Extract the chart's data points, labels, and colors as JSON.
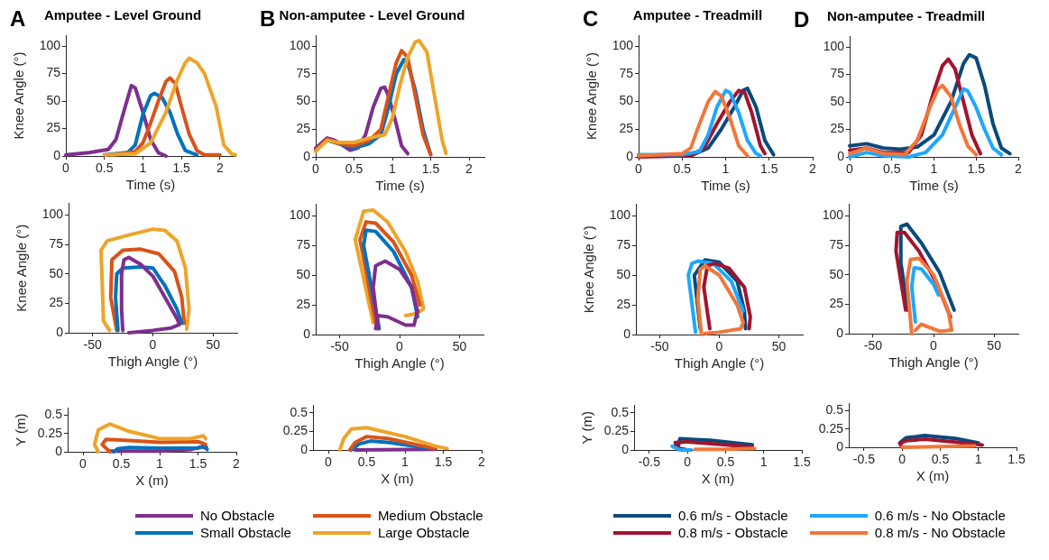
{
  "chart_data": [
    {
      "type": "line",
      "title": "Amputee - Level Ground",
      "annotations": [
        "A"
      ],
      "xlabel": "Time (s)",
      "ylabel": "Knee Angle (°)",
      "xlim": [
        0,
        2.2
      ],
      "xticks": [
        0,
        0.5,
        1,
        1.5,
        2
      ],
      "ylim": [
        0,
        110
      ],
      "yticks": [
        0,
        25,
        50,
        75,
        100
      ],
      "series": [
        {
          "color": "#7e2f8e",
          "x": [
            0,
            0.3,
            0.55,
            0.65,
            0.75,
            0.85,
            0.9,
            1.0,
            1.1,
            1.2,
            1.3
          ],
          "values": [
            1,
            3,
            6,
            15,
            40,
            64,
            62,
            40,
            15,
            3,
            0
          ]
        },
        {
          "color": "#0072bd",
          "x": [
            0.5,
            0.8,
            0.9,
            1.0,
            1.1,
            1.15,
            1.25,
            1.35,
            1.45,
            1.55,
            1.7
          ],
          "values": [
            1,
            3,
            10,
            38,
            55,
            57,
            53,
            40,
            20,
            5,
            1
          ]
        },
        {
          "color": "#d95319",
          "x": [
            0.6,
            0.9,
            1.0,
            1.1,
            1.2,
            1.3,
            1.35,
            1.42,
            1.5,
            1.6,
            1.7,
            1.8,
            2.0
          ],
          "values": [
            1,
            4,
            12,
            30,
            50,
            68,
            71,
            66,
            45,
            20,
            5,
            1,
            1
          ]
        },
        {
          "color": "#eda42a",
          "x": [
            0.5,
            0.9,
            1.1,
            1.3,
            1.45,
            1.55,
            1.6,
            1.7,
            1.8,
            1.95,
            2.05,
            2.15,
            2.2
          ],
          "values": [
            1,
            2,
            12,
            40,
            70,
            85,
            89,
            85,
            75,
            45,
            10,
            2,
            1
          ]
        }
      ]
    },
    {
      "type": "line",
      "title": "Non-amputee - Level Ground",
      "annotations": [
        "B"
      ],
      "xlabel": "Time (s)",
      "xlim": [
        0,
        2.2
      ],
      "xticks": [
        0,
        0.5,
        1,
        1.5,
        2
      ],
      "ylim": [
        0,
        110
      ],
      "yticks": [
        0,
        25,
        50,
        75,
        100
      ],
      "series": [
        {
          "color": "#7e2f8e",
          "x": [
            0,
            0.15,
            0.25,
            0.45,
            0.55,
            0.65,
            0.75,
            0.85,
            0.9,
            0.95,
            1.05,
            1.12,
            1.2
          ],
          "values": [
            8,
            17,
            15,
            6,
            8,
            20,
            45,
            62,
            63,
            55,
            30,
            10,
            3
          ]
        },
        {
          "color": "#0072bd",
          "x": [
            0,
            0.15,
            0.3,
            0.5,
            0.7,
            0.85,
            0.95,
            1.05,
            1.15,
            1.2,
            1.3,
            1.4,
            1.5
          ],
          "values": [
            6,
            15,
            12,
            8,
            12,
            20,
            45,
            75,
            88,
            85,
            60,
            25,
            2
          ]
        },
        {
          "color": "#d95319",
          "x": [
            0,
            0.15,
            0.3,
            0.5,
            0.7,
            0.85,
            0.95,
            1.05,
            1.12,
            1.2,
            1.3,
            1.4,
            1.5
          ],
          "values": [
            6,
            16,
            12,
            10,
            15,
            25,
            55,
            85,
            96,
            90,
            55,
            20,
            2
          ]
        },
        {
          "color": "#eda42a",
          "x": [
            0,
            0.15,
            0.3,
            0.5,
            0.7,
            0.9,
            1.0,
            1.1,
            1.2,
            1.3,
            1.35,
            1.45,
            1.55,
            1.65,
            1.7
          ],
          "values": [
            5,
            15,
            13,
            13,
            17,
            20,
            35,
            65,
            90,
            104,
            105,
            95,
            55,
            15,
            3
          ]
        }
      ]
    },
    {
      "type": "line",
      "title": "Amputee - Treadmill",
      "annotations": [
        "C"
      ],
      "xlabel": "Time (s)",
      "ylabel": "Knee Angle (°)",
      "xlim": [
        0,
        2
      ],
      "xticks": [
        0,
        0.5,
        1,
        1.5,
        2
      ],
      "ylim": [
        0,
        110
      ],
      "yticks": [
        0,
        25,
        50,
        75,
        100
      ],
      "series": [
        {
          "color": "#0a4a7c",
          "x": [
            0,
            0.6,
            0.8,
            0.95,
            1.1,
            1.2,
            1.25,
            1.35,
            1.45,
            1.55
          ],
          "values": [
            1,
            1,
            8,
            25,
            45,
            60,
            62,
            45,
            15,
            2
          ]
        },
        {
          "color": "#a2142f",
          "x": [
            0,
            0.6,
            0.75,
            0.9,
            1.05,
            1.15,
            1.22,
            1.3,
            1.4,
            1.45
          ],
          "values": [
            0,
            1,
            8,
            30,
            50,
            60,
            58,
            40,
            10,
            3
          ]
        },
        {
          "color": "#1ea7fd",
          "x": [
            0,
            0.5,
            0.7,
            0.8,
            0.9,
            1.0,
            1.05,
            1.15,
            1.25,
            1.35,
            1.4
          ],
          "values": [
            2,
            2,
            5,
            20,
            45,
            60,
            58,
            40,
            15,
            3,
            1
          ]
        },
        {
          "color": "#f2763a",
          "x": [
            0,
            0.5,
            0.6,
            0.7,
            0.8,
            0.88,
            0.95,
            1.05,
            1.15,
            1.25
          ],
          "values": [
            1,
            3,
            8,
            30,
            50,
            59,
            55,
            35,
            10,
            1
          ]
        }
      ]
    },
    {
      "type": "line",
      "title": "Non-amputee - Treadmill",
      "annotations": [
        "D"
      ],
      "xlabel": "Time (s)",
      "xlim": [
        0,
        2
      ],
      "xticks": [
        0,
        0.5,
        1,
        1.5,
        2
      ],
      "ylim": [
        0,
        110
      ],
      "yticks": [
        0,
        25,
        50,
        75,
        100
      ],
      "series": [
        {
          "color": "#0a4a7c",
          "x": [
            0,
            0.2,
            0.4,
            0.6,
            0.8,
            1.0,
            1.2,
            1.35,
            1.42,
            1.5,
            1.6,
            1.7,
            1.8,
            1.9
          ],
          "values": [
            10,
            12,
            8,
            7,
            9,
            20,
            50,
            85,
            93,
            90,
            65,
            30,
            8,
            3
          ]
        },
        {
          "color": "#a2142f",
          "x": [
            0,
            0.2,
            0.4,
            0.7,
            0.85,
            1.0,
            1.1,
            1.17,
            1.25,
            1.35,
            1.45,
            1.55
          ],
          "values": [
            6,
            8,
            4,
            4,
            20,
            60,
            83,
            89,
            80,
            50,
            20,
            3
          ]
        },
        {
          "color": "#1ea7fd",
          "x": [
            0,
            0.2,
            0.4,
            0.7,
            0.9,
            1.1,
            1.25,
            1.35,
            1.4,
            1.5,
            1.6,
            1.7,
            1.8
          ],
          "values": [
            0,
            4,
            1,
            0,
            4,
            20,
            45,
            62,
            60,
            45,
            25,
            8,
            2
          ]
        },
        {
          "color": "#f2763a",
          "x": [
            0,
            0.2,
            0.4,
            0.65,
            0.8,
            0.95,
            1.05,
            1.1,
            1.2,
            1.3,
            1.4,
            1.5
          ],
          "values": [
            3,
            8,
            3,
            2,
            15,
            45,
            62,
            65,
            55,
            30,
            10,
            2
          ]
        }
      ]
    },
    {
      "type": "line",
      "xlabel": "Thigh Angle (°)",
      "ylabel": "Knee Angle (°)",
      "xlim": [
        -70,
        70
      ],
      "xticks": [
        -50,
        0,
        50
      ],
      "ylim": [
        0,
        110
      ],
      "yticks": [
        0,
        25,
        50,
        75,
        100
      ],
      "series": [
        {
          "color": "#eda42a",
          "x": [
            -36,
            -41,
            -42,
            -43,
            -38,
            -20,
            0,
            10,
            20,
            27,
            30,
            28
          ],
          "values": [
            2,
            10,
            40,
            70,
            78,
            83,
            88,
            87,
            78,
            55,
            20,
            3
          ]
        },
        {
          "color": "#d95319",
          "x": [
            -30,
            -35,
            -34,
            -25,
            -10,
            5,
            18,
            24,
            26
          ],
          "values": [
            2,
            30,
            62,
            70,
            71,
            67,
            52,
            30,
            8
          ]
        },
        {
          "color": "#0072bd",
          "x": [
            -29,
            -31,
            -30,
            -25,
            -10,
            0,
            10,
            20,
            24
          ],
          "values": [
            2,
            30,
            50,
            55,
            56,
            55,
            40,
            20,
            8
          ]
        },
        {
          "color": "#7e2f8e",
          "x": [
            -25,
            -26,
            -26,
            -24,
            -20,
            -10,
            0,
            10,
            20,
            22,
            15,
            0,
            -20
          ],
          "values": [
            2,
            20,
            50,
            62,
            64,
            58,
            48,
            30,
            12,
            7,
            4,
            2,
            0
          ]
        }
      ]
    },
    {
      "type": "line",
      "xlabel": "Thigh Angle (°)",
      "xlim": [
        -70,
        70
      ],
      "xticks": [
        -50,
        0,
        50
      ],
      "ylim": [
        0,
        110
      ],
      "yticks": [
        0,
        25,
        50,
        75,
        100
      ],
      "series": [
        {
          "color": "#eda42a",
          "x": [
            -22,
            -37,
            -30,
            -22,
            -10,
            5,
            15,
            20,
            15,
            5
          ],
          "values": [
            10,
            80,
            104,
            105,
            95,
            70,
            45,
            22,
            18,
            16
          ]
        },
        {
          "color": "#d95319",
          "x": [
            -20,
            -33,
            -28,
            -20,
            -5,
            10,
            17
          ],
          "values": [
            10,
            80,
            95,
            94,
            78,
            50,
            25
          ]
        },
        {
          "color": "#0072bd",
          "x": [
            -17,
            -30,
            -28,
            -20,
            -5,
            10,
            15
          ],
          "values": [
            5,
            75,
            88,
            87,
            70,
            40,
            15
          ]
        },
        {
          "color": "#7e2f8e",
          "x": [
            -18,
            -22,
            -20,
            -12,
            0,
            10,
            15,
            12,
            5,
            -10,
            -18,
            -20
          ],
          "values": [
            5,
            40,
            58,
            62,
            55,
            40,
            20,
            8,
            8,
            15,
            16,
            5
          ]
        }
      ]
    },
    {
      "type": "line",
      "xlabel": "Thigh Angle (°)",
      "ylabel": "Knee Angle (°)",
      "xlim": [
        -70,
        70
      ],
      "xticks": [
        -50,
        0,
        50
      ],
      "ylim": [
        0,
        110
      ],
      "yticks": [
        0,
        25,
        50,
        75,
        100
      ],
      "series": [
        {
          "color": "#0a4a7c",
          "x": [
            -16,
            -21,
            -12,
            0,
            15,
            21,
            22
          ],
          "values": [
            5,
            50,
            63,
            61,
            45,
            20,
            5
          ]
        },
        {
          "color": "#1ea7fd",
          "x": [
            -20,
            -26,
            -23,
            -18,
            -5,
            10,
            20
          ],
          "values": [
            2,
            50,
            60,
            62,
            60,
            45,
            20
          ]
        },
        {
          "color": "#a2142f",
          "x": [
            -8,
            -13,
            -10,
            -4,
            8,
            21,
            26,
            25
          ],
          "values": [
            5,
            40,
            58,
            60,
            56,
            40,
            15,
            5
          ]
        },
        {
          "color": "#f2763a",
          "x": [
            -15,
            -18,
            -16,
            -12,
            0,
            15,
            20,
            18,
            0,
            -12
          ],
          "values": [
            0,
            30,
            55,
            58,
            50,
            25,
            10,
            5,
            2,
            1
          ]
        }
      ]
    },
    {
      "type": "line",
      "xlabel": "Thigh Angle (°)",
      "xlim": [
        -70,
        70
      ],
      "xticks": [
        -50,
        0,
        50
      ],
      "ylim": [
        0,
        110
      ],
      "yticks": [
        0,
        25,
        50,
        75,
        100
      ],
      "series": [
        {
          "color": "#0a4a7c",
          "x": [
            -21,
            -27,
            -27,
            -22,
            -10,
            5,
            17
          ],
          "values": [
            20,
            60,
            91,
            93,
            77,
            52,
            20
          ]
        },
        {
          "color": "#a2142f",
          "x": [
            -23,
            -31,
            -30,
            -24,
            -12,
            3,
            14
          ],
          "values": [
            20,
            70,
            86,
            86,
            70,
            42,
            14
          ]
        },
        {
          "color": "#1ea7fd",
          "x": [
            -15,
            -18,
            -16,
            -10,
            0,
            4
          ],
          "values": [
            10,
            40,
            56,
            55,
            42,
            33
          ]
        },
        {
          "color": "#f2763a",
          "x": [
            -18,
            -22,
            -19,
            -12,
            0,
            12,
            15,
            5,
            -10,
            -15
          ],
          "values": [
            0,
            45,
            63,
            64,
            50,
            20,
            3,
            2,
            8,
            3
          ]
        }
      ]
    },
    {
      "type": "line",
      "xlabel": "X (m)",
      "ylabel": "Y (m)",
      "legend": "bottom",
      "xlim": [
        -0.2,
        2
      ],
      "xticks": [
        0,
        0.5,
        1,
        1.5,
        2
      ],
      "ylim": [
        0,
        0.6
      ],
      "yticks": [
        0,
        0.25,
        0.5
      ],
      "series": [
        {
          "name": "No Obstacle",
          "color": "#7e2f8e",
          "x": [
            0.35,
            1.0,
            1.4,
            1.55,
            1.6
          ],
          "values": [
            0.01,
            0.01,
            0.03,
            0.07,
            0.05
          ]
        },
        {
          "name": "Small Obstacle",
          "color": "#0072bd",
          "x": [
            0.4,
            0.45,
            0.6,
            1.0,
            1.5,
            1.6,
            1.62
          ],
          "values": [
            0,
            0.04,
            0.06,
            0.05,
            0.05,
            0.08,
            0.03
          ]
        },
        {
          "name": "Medium Obstacle",
          "color": "#d95319",
          "x": [
            0.35,
            0.25,
            0.3,
            0.5,
            1.0,
            1.5,
            1.6
          ],
          "values": [
            0,
            0.1,
            0.17,
            0.16,
            0.13,
            0.14,
            0.1
          ]
        },
        {
          "name": "Large Obstacle",
          "color": "#eda42a",
          "x": [
            0.2,
            0.15,
            0.2,
            0.35,
            0.6,
            1.0,
            1.4,
            1.57,
            1.6
          ],
          "values": [
            0,
            0.1,
            0.3,
            0.38,
            0.28,
            0.18,
            0.18,
            0.22,
            0.18
          ]
        }
      ]
    },
    {
      "type": "line",
      "xlabel": "X (m)",
      "xlim": [
        -0.2,
        2
      ],
      "xticks": [
        0,
        0.5,
        1,
        1.5,
        2
      ],
      "ylim": [
        0,
        0.6
      ],
      "yticks": [
        0,
        0.25,
        0.5
      ],
      "series": [
        {
          "color": "#7e2f8e",
          "x": [
            0.35,
            1.4
          ],
          "values": [
            0,
            0.01
          ]
        },
        {
          "color": "#0072bd",
          "x": [
            0.3,
            0.4,
            0.55,
            0.8,
            1.2,
            1.35
          ],
          "values": [
            0,
            0.08,
            0.12,
            0.1,
            0.04,
            0.02
          ]
        },
        {
          "color": "#d95319",
          "x": [
            0.28,
            0.35,
            0.5,
            0.8,
            1.2,
            1.4
          ],
          "values": [
            0,
            0.1,
            0.18,
            0.15,
            0.06,
            0.02
          ]
        },
        {
          "color": "#eda42a",
          "x": [
            0.15,
            0.2,
            0.3,
            0.5,
            1.0,
            1.4,
            1.55
          ],
          "values": [
            0,
            0.15,
            0.28,
            0.3,
            0.18,
            0.05,
            0.02
          ]
        }
      ]
    },
    {
      "type": "line",
      "xlabel": "X (m)",
      "ylabel": "Y (m)",
      "legend": "bottom",
      "xlim": [
        -0.7,
        1.5
      ],
      "xticks": [
        -0.5,
        0,
        0.5,
        1,
        1.5
      ],
      "ylim": [
        0,
        0.6
      ],
      "yticks": [
        0,
        0.25,
        0.5
      ],
      "series": [
        {
          "name": "0.6 m/s - Obstacle",
          "color": "#0a4a7c",
          "x": [
            -0.12,
            -0.1,
            0.3,
            0.85
          ],
          "values": [
            0.05,
            0.15,
            0.13,
            0.07
          ]
        },
        {
          "name": "0.8 m/s - Obstacle",
          "color": "#a2142f",
          "x": [
            0,
            -0.15,
            -0.16,
            0,
            0.5,
            0.85
          ],
          "values": [
            0,
            0.03,
            0.1,
            0.11,
            0.07,
            0.04
          ]
        },
        {
          "name": "0.6 m/s - No Obstacle",
          "color": "#1ea7fd",
          "x": [
            -0.2,
            -0.1,
            0.05
          ],
          "values": [
            0.05,
            0,
            0
          ]
        },
        {
          "name": "0.8 m/s - No Obstacle",
          "color": "#f2763a",
          "x": [
            0.1,
            0.5,
            0.88
          ],
          "values": [
            0.01,
            0.01,
            0.02
          ]
        }
      ]
    },
    {
      "type": "line",
      "xlabel": "X (m)",
      "xlim": [
        -0.7,
        1.5
      ],
      "xticks": [
        -0.5,
        0,
        0.5,
        1,
        1.5
      ],
      "ylim": [
        0,
        0.6
      ],
      "yticks": [
        0,
        0.25,
        0.5
      ],
      "series": [
        {
          "color": "#0a4a7c",
          "x": [
            -0.03,
            0.05,
            0.3,
            0.7,
            1.0
          ],
          "values": [
            0.06,
            0.13,
            0.16,
            0.12,
            0.06
          ]
        },
        {
          "color": "#a2142f",
          "x": [
            0,
            -0.03,
            0.05,
            0.3,
            0.7,
            1.05
          ],
          "values": [
            0,
            0.05,
            0.09,
            0.11,
            0.07,
            0.03
          ]
        },
        {
          "color": "#f2763a",
          "x": [
            0,
            0.5,
            0.95
          ],
          "values": [
            0,
            0.01,
            0.02
          ]
        }
      ]
    }
  ]
}
